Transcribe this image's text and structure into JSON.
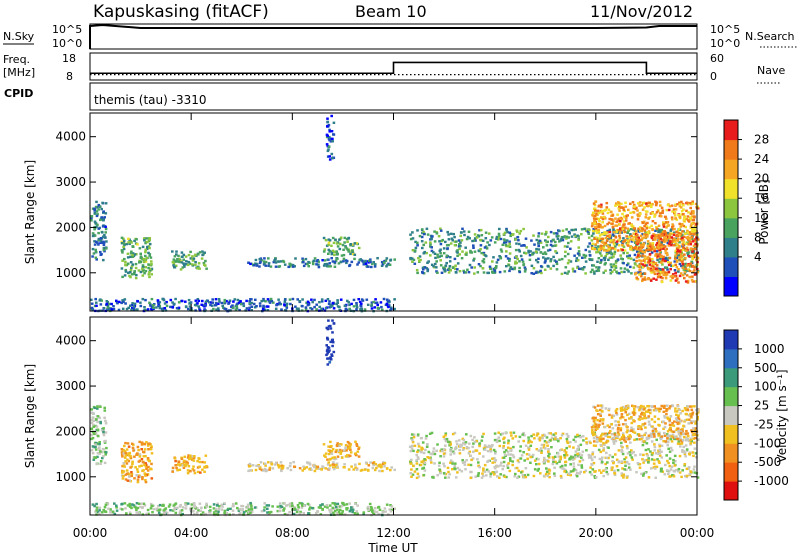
{
  "header": {
    "station": "Kapuskasing (fitACF)",
    "beam": "Beam 10",
    "date": "11/Nov/2012"
  },
  "panel_sky": {
    "left_label": "N.Sky",
    "left_ticks": [
      "10^5",
      "10^0"
    ],
    "right_ticks": [
      "10^5",
      "10^0"
    ],
    "right_label": "N.Search"
  },
  "panel_freq": {
    "left_label_1": "Freq.",
    "left_label_2": "[MHz]",
    "left_ticks": [
      "18",
      "8"
    ],
    "right_ticks": [
      "60",
      "0"
    ],
    "right_label": "Nave",
    "cpid_label": "CPID",
    "cpid_text": "themis (tau) -3310"
  },
  "power_panel": {
    "ylabel": "Slant Range [km]",
    "yticks": [
      "4000",
      "3000",
      "2000",
      "1000"
    ],
    "colorbar_label": "Power [dB]",
    "colorbar_ticks": [
      "28",
      "24",
      "20",
      "16",
      "12",
      "8",
      "4"
    ],
    "colors": [
      "#0000ff",
      "#1f4fb8",
      "#2f7f8a",
      "#49a35f",
      "#8cc63f",
      "#f0e12a",
      "#f5a623",
      "#f07a1a",
      "#e81c1c"
    ]
  },
  "velocity_panel": {
    "ylabel": "Slant Range [km]",
    "yticks": [
      "4000",
      "3000",
      "2000",
      "1000"
    ],
    "colorbar_label": "Velocity [m s⁻¹]",
    "colorbar_ticks": [
      "1000",
      "500",
      "100",
      "25",
      "-25",
      "-100",
      "-500",
      "-1000"
    ],
    "colors": [
      "#1f3ab3",
      "#2f6fbf",
      "#3a9a7a",
      "#67bf4f",
      "#c8c8c0",
      "#f0c020",
      "#f09020",
      "#f06010",
      "#e01010"
    ]
  },
  "xaxis": {
    "ticks": [
      "00:00",
      "04:00",
      "08:00",
      "12:00",
      "16:00",
      "20:00",
      "00:00"
    ],
    "label": "Time UT"
  },
  "chart_data": [
    {
      "type": "line",
      "name": "N.Sky / N.Search",
      "x_unit": "hours UT",
      "x": [
        0,
        0.5,
        1,
        2,
        4,
        6,
        8,
        10,
        12,
        14,
        16,
        18,
        20,
        22,
        22.5,
        24
      ],
      "y_log10": [
        4.6,
        4.8,
        4.6,
        4.2,
        4.2,
        4.2,
        4.2,
        4.2,
        4.2,
        4.2,
        4.2,
        4.2,
        4.2,
        4.3,
        4.6,
        4.6
      ]
    },
    {
      "type": "line",
      "name": "Freq.",
      "x_unit": "hours UT",
      "series": [
        {
          "name": "Freq.",
          "x": [
            0,
            12,
            12,
            22,
            22,
            24
          ],
          "values": [
            10.5,
            10.5,
            14.5,
            14.5,
            10.5,
            10.5
          ]
        },
        {
          "name": "Nave",
          "x": [
            0,
            24
          ],
          "values": [
            10,
            10
          ]
        }
      ]
    },
    {
      "type": "heatmap",
      "title": "Power [dB]",
      "x_range": [
        0,
        24
      ],
      "y_range": [
        180,
        4500
      ],
      "ylabel": "Slant Range [km]",
      "clim": [
        0,
        30
      ],
      "regions": [
        {
          "x": [
            0,
            0.6
          ],
          "y": [
            1300,
            2600
          ],
          "value": 8
        },
        {
          "x": [
            1.2,
            2.4
          ],
          "y": [
            900,
            1800
          ],
          "value": 12
        },
        {
          "x": [
            3.2,
            4.6
          ],
          "y": [
            1100,
            1500
          ],
          "value": 12
        },
        {
          "x": [
            6.2,
            12
          ],
          "y": [
            1150,
            1350
          ],
          "value": 8
        },
        {
          "x": [
            9.2,
            10.6
          ],
          "y": [
            1400,
            1800
          ],
          "value": 12
        },
        {
          "x": [
            12.6,
            24
          ],
          "y": [
            1000,
            2000
          ],
          "value": 10
        },
        {
          "x": [
            19.8,
            24
          ],
          "y": [
            1500,
            2600
          ],
          "value": 22
        },
        {
          "x": [
            21.5,
            24
          ],
          "y": [
            800,
            1900
          ],
          "value": 24
        },
        {
          "x": [
            9.3,
            9.6
          ],
          "y": [
            3500,
            4500
          ],
          "value": 6
        },
        {
          "x": [
            0,
            12
          ],
          "y": [
            180,
            450
          ],
          "value": 6
        }
      ]
    },
    {
      "type": "heatmap",
      "title": "Velocity",
      "x_range": [
        0,
        24
      ],
      "y_range": [
        180,
        4500
      ],
      "ylabel": "Slant Range [km]",
      "clim": [
        -1000,
        1000
      ],
      "regions": [
        {
          "x": [
            0,
            0.6
          ],
          "y": [
            1300,
            2600
          ],
          "value": 100
        },
        {
          "x": [
            1.2,
            2.4
          ],
          "y": [
            900,
            1800
          ],
          "value": -200
        },
        {
          "x": [
            3.2,
            4.6
          ],
          "y": [
            1100,
            1500
          ],
          "value": -200
        },
        {
          "x": [
            6.2,
            12
          ],
          "y": [
            1150,
            1350
          ],
          "value": -100
        },
        {
          "x": [
            9.2,
            10.6
          ],
          "y": [
            1400,
            1800
          ],
          "value": -150
        },
        {
          "x": [
            12.6,
            24
          ],
          "y": [
            1000,
            2000
          ],
          "value": 0
        },
        {
          "x": [
            19.8,
            24
          ],
          "y": [
            1800,
            2600
          ],
          "value": -150
        },
        {
          "x": [
            9.3,
            9.6
          ],
          "y": [
            3500,
            4500
          ],
          "value": 600
        },
        {
          "x": [
            0,
            12
          ],
          "y": [
            180,
            450
          ],
          "value": 100
        }
      ]
    }
  ]
}
